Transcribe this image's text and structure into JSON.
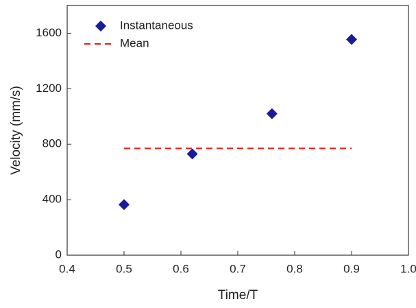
{
  "chart_data": {
    "type": "scatter",
    "x_label": "Time/T",
    "y_label": "Velocity (mm/s)",
    "series": [
      {
        "name": "Instantaneous",
        "type": "scatter",
        "marker": "diamond",
        "color": "#1a1aa0",
        "x": [
          0.5,
          0.62,
          0.76,
          0.9
        ],
        "values": [
          365,
          730,
          1020,
          1555
        ]
      },
      {
        "name": "Mean",
        "type": "line",
        "dashed": true,
        "color": "#e8201c",
        "x": [
          0.5,
          0.9
        ],
        "values": [
          770,
          770
        ]
      }
    ],
    "xlim": [
      0.4,
      1.0
    ],
    "xticks": [
      0.4,
      0.5,
      0.6,
      0.7,
      0.8,
      0.9,
      {
        "value": 1,
        "label": "1.0"
      }
    ],
    "ylim": [
      0,
      1800
    ],
    "yticks": [
      0,
      400,
      800,
      1200,
      1600
    ],
    "legend": "upper left",
    "grid": false
  }
}
